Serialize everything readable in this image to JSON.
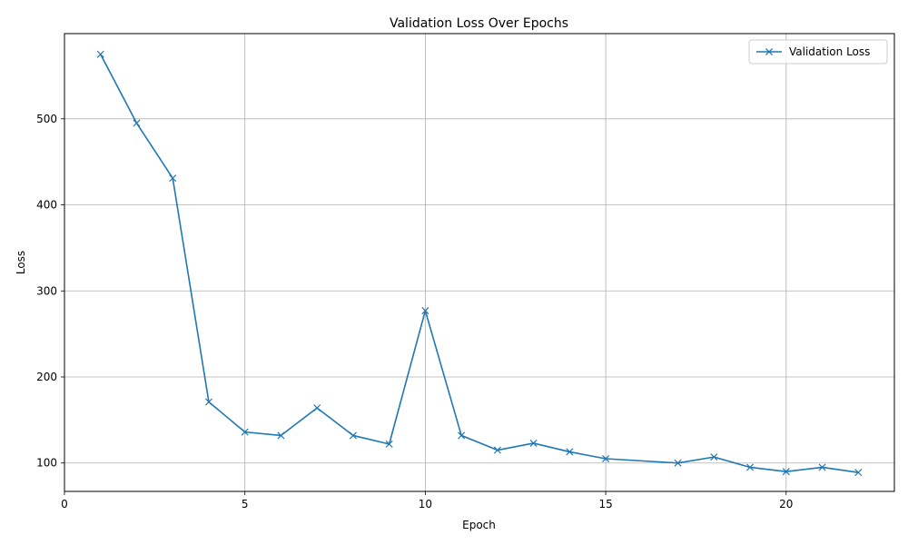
{
  "chart_data": {
    "type": "line",
    "title": "Validation Loss Over Epochs",
    "xlabel": "Epoch",
    "ylabel": "Loss",
    "xlim": [
      0,
      23
    ],
    "ylim": [
      67,
      599
    ],
    "xticks": [
      0,
      5,
      10,
      15,
      20
    ],
    "yticks": [
      100,
      200,
      300,
      400,
      500
    ],
    "grid": true,
    "legend_position": "top-right",
    "series": [
      {
        "name": "Validation Loss",
        "color": "#1f77b4",
        "marker": "x",
        "x": [
          1,
          2,
          3,
          4,
          5,
          6,
          7,
          8,
          9,
          10,
          11,
          12,
          13,
          14,
          15,
          17,
          18,
          19,
          20,
          21,
          22
        ],
        "y": [
          575,
          495,
          431,
          171,
          136,
          132,
          164,
          132,
          122,
          277,
          132,
          115,
          123,
          113,
          105,
          100,
          107,
          95,
          90,
          95,
          89
        ]
      }
    ]
  }
}
